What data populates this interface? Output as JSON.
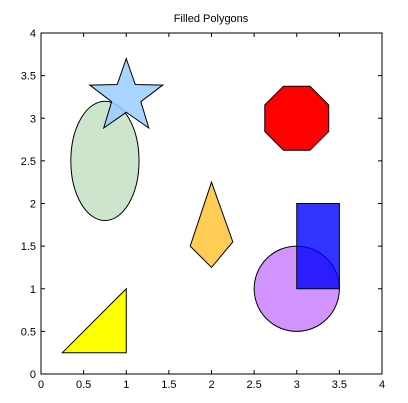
{
  "chart_data": {
    "type": "polygons",
    "title": "Filled Polygons",
    "xlabel": "",
    "ylabel": "",
    "xlim": [
      0,
      4
    ],
    "ylim": [
      0,
      4
    ],
    "xticks": [
      0,
      0.5,
      1,
      1.5,
      2,
      2.5,
      3,
      3.5,
      4
    ],
    "yticks": [
      0,
      0.5,
      1,
      1.5,
      2,
      2.5,
      3,
      3.5,
      4
    ],
    "xtick_labels": [
      "0",
      "0.5",
      "1",
      "1.5",
      "2",
      "2.5",
      "3",
      "3.5",
      "4"
    ],
    "ytick_labels": [
      "0",
      "0.5",
      "1",
      "1.5",
      "2",
      "2.5",
      "3",
      "3.5",
      "4"
    ],
    "grid": false,
    "shapes": [
      {
        "name": "triangle",
        "fill": "#ffff00",
        "opacity": 1,
        "points": [
          [
            0.25,
            0.25
          ],
          [
            1.0,
            0.25
          ],
          [
            1.0,
            1.0
          ]
        ]
      },
      {
        "name": "ellipse",
        "fill": "#cce5cc",
        "opacity": 1,
        "ellipse": {
          "cx": 0.75,
          "cy": 2.5,
          "rx": 0.4,
          "ry": 0.7
        }
      },
      {
        "name": "star",
        "fill": "#99ccff",
        "opacity": 0.85,
        "star": {
          "cx": 1.0,
          "cy": 3.25,
          "outer": 0.45,
          "inner": 0.18
        }
      },
      {
        "name": "diamond",
        "fill": "#ffcc55",
        "opacity": 1,
        "points": [
          [
            2.0,
            2.25
          ],
          [
            2.25,
            1.55
          ],
          [
            2.0,
            1.25
          ],
          [
            1.75,
            1.5
          ]
        ]
      },
      {
        "name": "octagon",
        "fill": "#ff0000",
        "opacity": 1,
        "octagon": {
          "cx": 3.0,
          "cy": 3.0,
          "half": 0.375
        }
      },
      {
        "name": "circle",
        "fill": "#cc88ff",
        "opacity": 0.9,
        "ellipse": {
          "cx": 3.0,
          "cy": 1.0,
          "rx": 0.5,
          "ry": 0.5
        }
      },
      {
        "name": "rectangle",
        "fill": "#0000ff",
        "opacity": 0.8,
        "points": [
          [
            3.0,
            1.0
          ],
          [
            3.5,
            1.0
          ],
          [
            3.5,
            2.0
          ],
          [
            3.0,
            2.0
          ]
        ]
      }
    ]
  }
}
